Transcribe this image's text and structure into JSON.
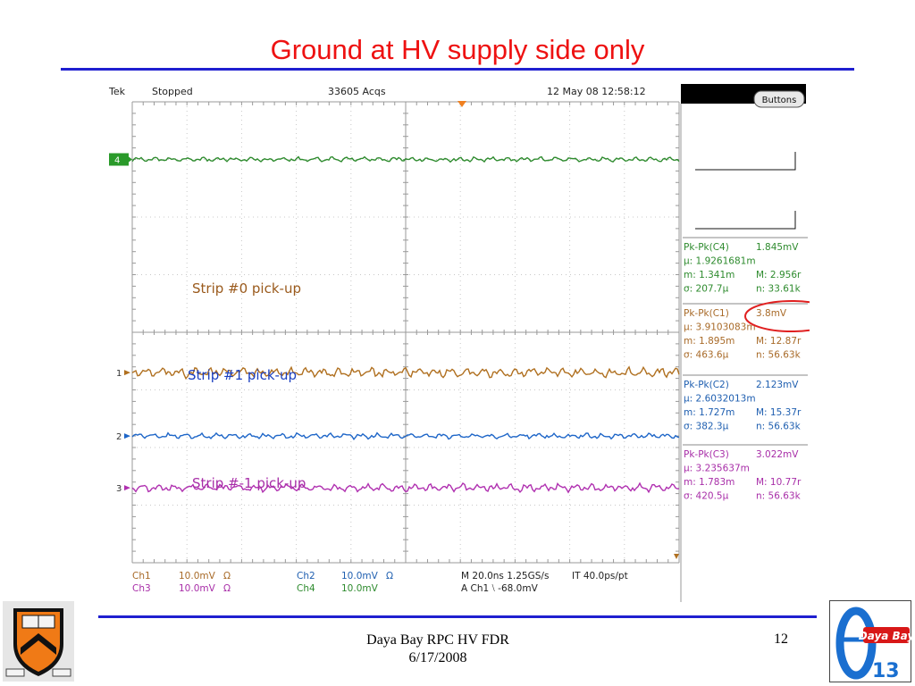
{
  "slide": {
    "title": "Ground at HV supply side only",
    "footer": {
      "line1": "Daya Bay RPC HV FDR",
      "line2": "6/17/2008"
    },
    "page_number": "12",
    "right_logo_text": "Daya Bay",
    "right_logo_sub": "13"
  },
  "scope": {
    "brand": "Tek",
    "state": "Stopped",
    "acqs": "33605 Acqs",
    "datetime": "12 May 08 12:58:12",
    "buttons_label": "Buttons",
    "settings": {
      "ch1": "Ch1",
      "ch1_scale": "10.0mV",
      "ch1_term": "Ω",
      "ch3": "Ch3",
      "ch3_scale": "10.0mV",
      "ch3_term": "Ω",
      "ch2": "Ch2",
      "ch2_scale": "10.0mV",
      "ch2_term": "Ω",
      "ch4": "Ch4",
      "ch4_scale": "10.0mV",
      "timebase": "M 20.0ns 1.25GS/s",
      "res": "IT 40.0ps/pt",
      "trigger": "A  Ch1  ⧵  -68.0mV"
    },
    "measurements": [
      {
        "color": "#2e8b2e",
        "head": "Pk-Pk(C4)",
        "value": "1.845mV",
        "mu": "μ:  1.9261681m",
        "m": "m:  1.341m",
        "M": "M: 2.956r",
        "sigma": "σ:  207.7μ",
        "n": "n:  33.61k"
      },
      {
        "color": "#a86a28",
        "head": "Pk-Pk(C1)",
        "value": "3.8mV",
        "mu": "μ:  3.9103083m",
        "m": "m:  1.895m",
        "M": "M: 12.87r",
        "sigma": "σ:  463.6μ",
        "n": "n:  56.63k"
      },
      {
        "color": "#1f5fb0",
        "head": "Pk-Pk(C2)",
        "value": "2.123mV",
        "mu": "μ:  2.6032013m",
        "m": "m:  1.727m",
        "M": "M: 15.37r",
        "sigma": "σ:  382.3μ",
        "n": "n:  56.63k"
      },
      {
        "color": "#a82ea8",
        "head": "Pk-Pk(C3)",
        "value": "3.022mV",
        "mu": "μ:  3.235637m",
        "m": "m:  1.783m",
        "M": "M: 10.77r",
        "sigma": "σ:  420.5μ",
        "n": "n:  56.63k"
      }
    ]
  },
  "chart_data": {
    "type": "line",
    "title": "Ground at HV supply side only",
    "grid": true,
    "series": [
      {
        "channel": "4",
        "color": "#2e8b2e",
        "marker": "4",
        "level_div": 3.0,
        "amplitude_mv": 1.845,
        "label": ""
      },
      {
        "channel": "1",
        "color": "#b07020",
        "marker": "1",
        "level_div": -0.7,
        "amplitude_mv": 3.8,
        "label": "Strip #0 pick-up"
      },
      {
        "channel": "2",
        "color": "#1e66c8",
        "marker": "2",
        "level_div": -1.8,
        "amplitude_mv": 2.123,
        "label": "Strip #1 pick-up"
      },
      {
        "channel": "3",
        "color": "#b030b0",
        "marker": "3",
        "level_div": -2.7,
        "amplitude_mv": 3.022,
        "label": "Strip #-1 pick-up"
      }
    ],
    "annotations": [
      "Strip #0 pick-up",
      "Strip #1 pick-up",
      "Strip #-1 pick-up"
    ],
    "divisions": {
      "x": 10,
      "y": 8
    }
  }
}
